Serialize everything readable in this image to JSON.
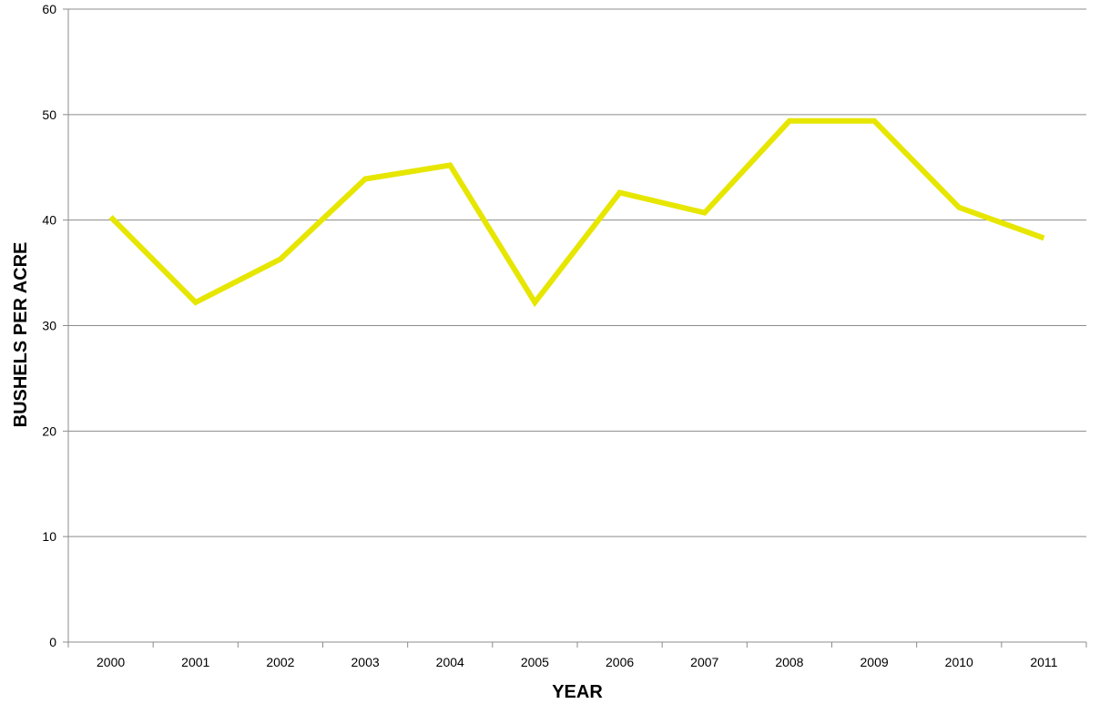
{
  "chart_data": {
    "type": "line",
    "title": "",
    "xlabel": "YEAR",
    "ylabel": "BUSHELS PER ACRE",
    "categories": [
      "2000",
      "2001",
      "2002",
      "2003",
      "2004",
      "2005",
      "2006",
      "2007",
      "2008",
      "2009",
      "2010",
      "2011"
    ],
    "series": [
      {
        "values": [
          40.3,
          32.2,
          36.3,
          43.9,
          45.2,
          32.2,
          42.6,
          40.7,
          49.4,
          49.4,
          41.2,
          38.3
        ],
        "color": "#E6E600"
      }
    ],
    "ylim": [
      0,
      60
    ],
    "yticks": [
      0,
      10,
      20,
      30,
      40,
      50,
      60
    ],
    "grid": true,
    "legend": "none"
  }
}
